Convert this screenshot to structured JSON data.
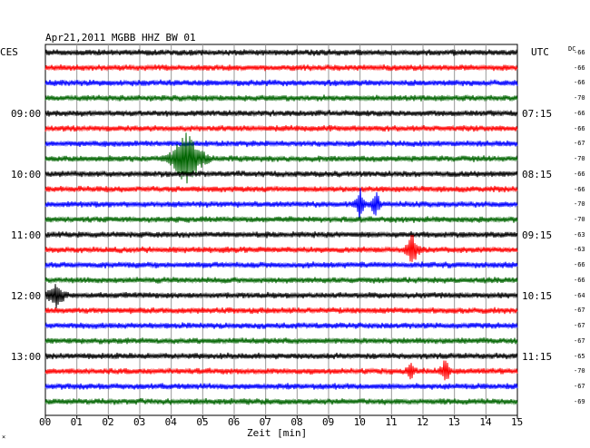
{
  "header": {
    "title": "Apr21,2011   MGBB HHZ BW 01",
    "left_tz": "CES",
    "right_tz": "UTC",
    "dc_label": "DC"
  },
  "left_times": [
    "09:00",
    "10:00",
    "11:00",
    "12:00",
    "13:00"
  ],
  "right_times": [
    "07:15",
    "08:15",
    "09:15",
    "10:15",
    "11:15"
  ],
  "dc_values": [
    "-66",
    "-66",
    "-66",
    "-70",
    "-66",
    "-66",
    "-67",
    "-70",
    "-66",
    "-66",
    "-70",
    "-70",
    "-63",
    "-63",
    "-66",
    "-66",
    "-64",
    "-67",
    "-67",
    "-67",
    "-65",
    "-70",
    "-67",
    "-69"
  ],
  "x_ticks": [
    "00",
    "01",
    "02",
    "03",
    "04",
    "05",
    "06",
    "07",
    "08",
    "09",
    "10",
    "11",
    "12",
    "13",
    "14",
    "15"
  ],
  "x_axis_label": "Zeit [min]",
  "corner_mark": "×",
  "trace_colors": [
    "#000000",
    "#ff0000",
    "#0000ff",
    "#006400"
  ],
  "events": [
    {
      "trace": 7,
      "minute": 4.5,
      "amp": 3.0,
      "width": 0.9
    },
    {
      "trace": 10,
      "minute": 10.0,
      "amp": 2.0,
      "width": 0.25
    },
    {
      "trace": 10,
      "minute": 10.5,
      "amp": 1.5,
      "width": 0.25
    },
    {
      "trace": 13,
      "minute": 11.65,
      "amp": 2.0,
      "width": 0.35
    },
    {
      "trace": 16,
      "minute": 0.35,
      "amp": 1.2,
      "width": 0.5
    },
    {
      "trace": 21,
      "minute": 11.6,
      "amp": 0.8,
      "width": 0.25
    },
    {
      "trace": 21,
      "minute": 12.7,
      "amp": 1.2,
      "width": 0.3
    }
  ]
}
